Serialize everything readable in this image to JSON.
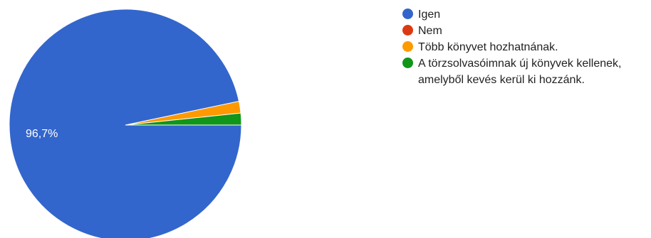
{
  "chart_data": {
    "type": "pie",
    "labels": [
      "Igen",
      "Nem",
      "Több könyvet hozhatnának.",
      "A törzsolvasóimnak új könyvek kellenek, amelyből kevés kerül ki hozzánk."
    ],
    "values": [
      96.7,
      0,
      1.65,
      1.65
    ],
    "colors": [
      "#3366cc",
      "#dc3912",
      "#ff9900",
      "#109618"
    ],
    "slice_labels": [
      "96,7%",
      "",
      "",
      ""
    ],
    "legend_position": "right"
  }
}
